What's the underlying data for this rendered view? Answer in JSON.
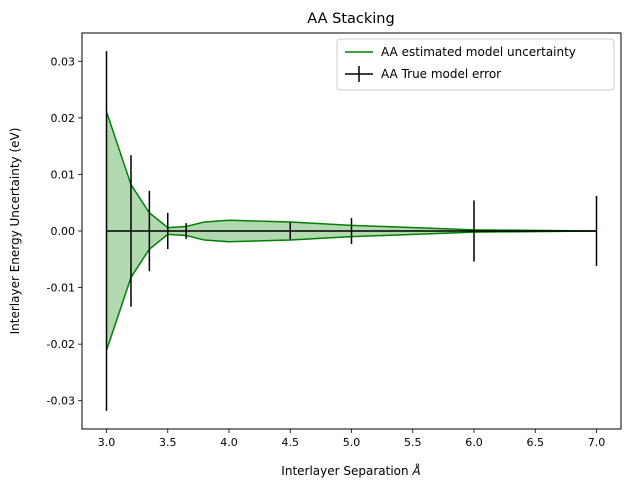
{
  "chart_data": {
    "type": "line",
    "title": "AA Stacking",
    "xlabel": "Interlayer Separation",
    "xlabel_unit": "Å",
    "ylabel": "Interlayer Energy Uncertainty (eV)",
    "xlim": [
      2.8,
      7.2
    ],
    "ylim": [
      -0.035,
      0.035
    ],
    "xticks": [
      "3.0",
      "3.5",
      "4.0",
      "4.5",
      "5.0",
      "5.5",
      "6.0",
      "6.5",
      "7.0"
    ],
    "yticks": [
      "0.03",
      "0.02",
      "0.01",
      "0.00",
      "-0.01",
      "-0.02",
      "-0.03"
    ],
    "legend_position": "upper right",
    "series": [
      {
        "name": "AA estimated model uncertainty",
        "kind": "band",
        "color": "#008000",
        "fill_color": "#b3d9b1",
        "x": [
          3.0,
          3.2,
          3.35,
          3.5,
          3.65,
          3.8,
          4.0,
          4.5,
          5.0,
          6.0,
          7.0
        ],
        "upper": [
          0.0211,
          0.0082,
          0.0032,
          0.0006,
          0.0008,
          0.0016,
          0.0019,
          0.0016,
          0.001,
          0.0002,
          0.0
        ],
        "lower": [
          -0.0211,
          -0.0082,
          -0.0032,
          -0.0006,
          -0.0008,
          -0.0016,
          -0.0019,
          -0.0016,
          -0.001,
          -0.0002,
          0.0
        ]
      },
      {
        "name": "AA True model error",
        "kind": "errorbar",
        "color": "#000000",
        "x": [
          3.0,
          3.2,
          3.35,
          3.5,
          3.65,
          4.5,
          5.0,
          6.0,
          7.0
        ],
        "y": [
          0.0,
          0.0,
          0.0,
          0.0,
          0.0,
          0.0,
          0.0,
          0.0,
          0.0
        ],
        "err": [
          0.0318,
          0.0134,
          0.0071,
          0.0032,
          0.0014,
          0.0015,
          0.0023,
          0.0054,
          0.0062
        ]
      }
    ]
  }
}
